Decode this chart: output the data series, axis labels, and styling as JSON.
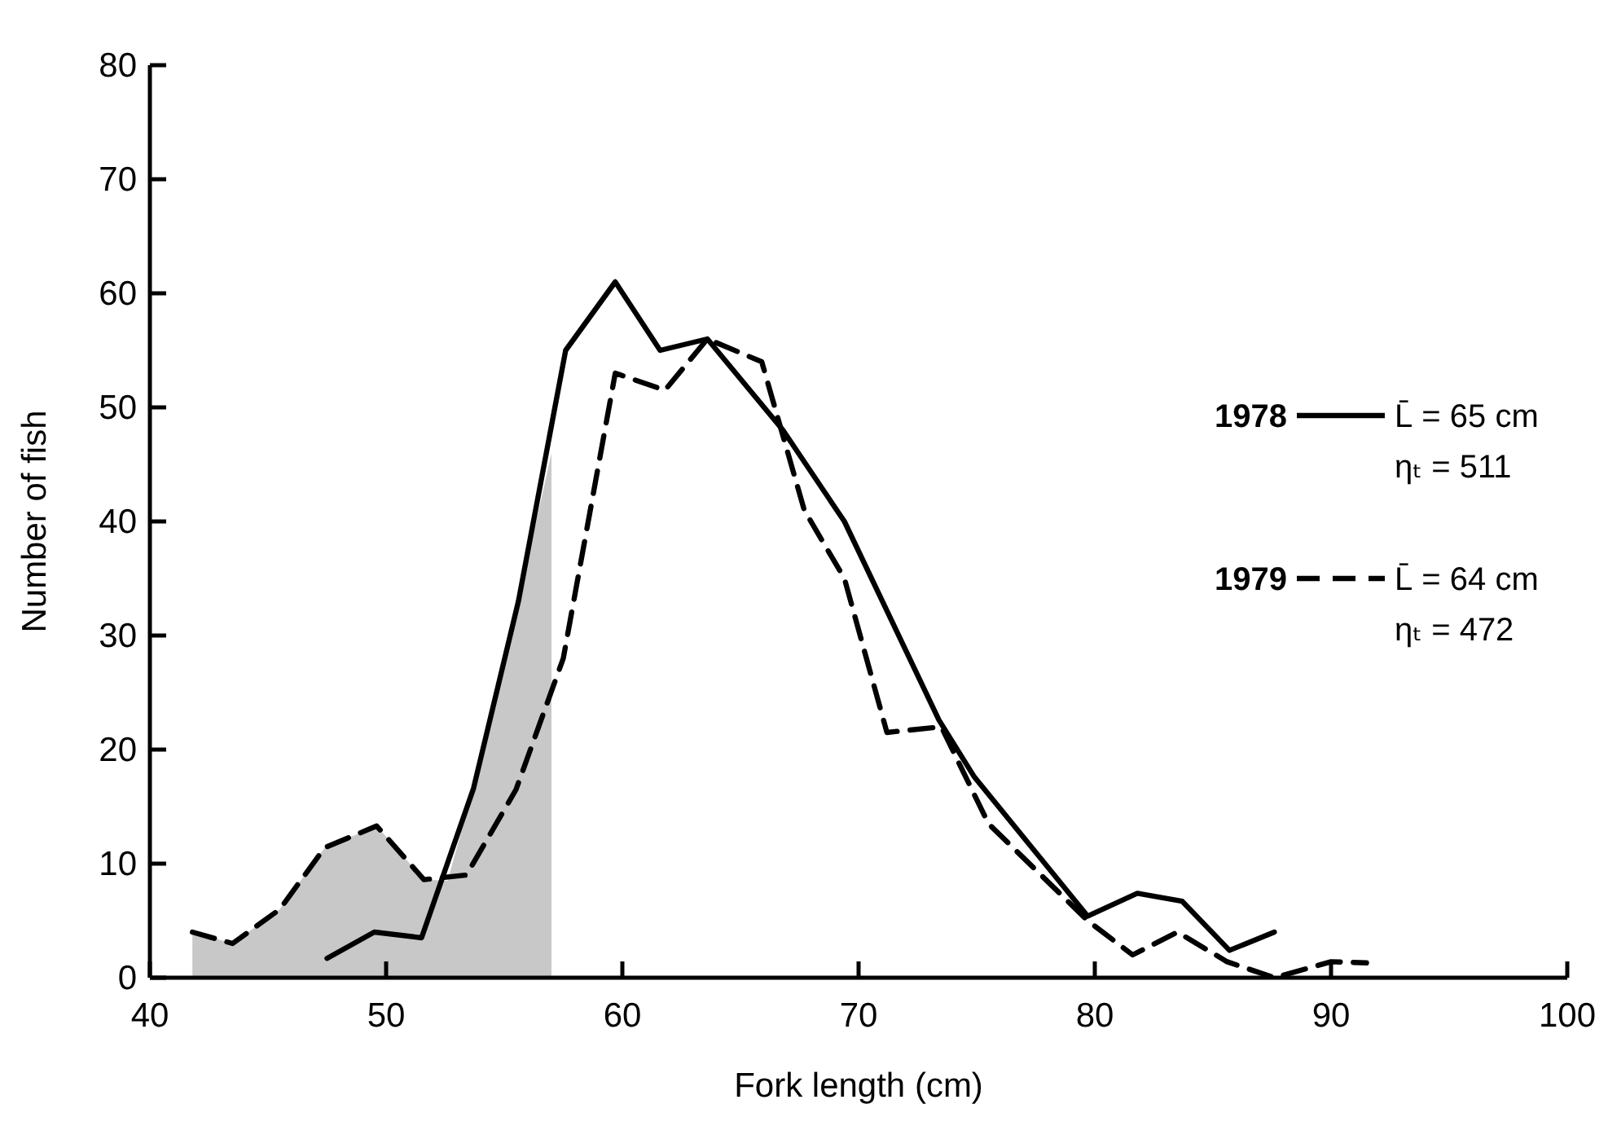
{
  "chart_data": {
    "type": "line",
    "xlabel": "Fork length (cm)",
    "ylabel": "Number of fish",
    "xlim": [
      40,
      100
    ],
    "xticks": [
      40,
      50,
      60,
      70,
      80,
      90,
      100
    ],
    "ylim": [
      0,
      80
    ],
    "yticks": [
      0,
      10,
      20,
      30,
      40,
      50,
      60,
      70,
      80
    ],
    "grid": false,
    "legend": "right",
    "marker": "none",
    "annotations": [
      "L̄ = 65 cm",
      "ηₜ = 511",
      "L̄ = 64 cm",
      "ηₜ = 472"
    ],
    "series": [
      {
        "type": "area",
        "color": "#c8c8c8",
        "x": [
          41.8,
          43.5,
          45.5,
          47.4,
          49.6,
          51.6,
          52.6,
          53.7,
          55.6,
          57,
          57
        ],
        "values": [
          4,
          3,
          6,
          11.4,
          13.3,
          8.6,
          8.5,
          16.6,
          33,
          46,
          0
        ]
      },
      {
        "name": "1978",
        "color": "#000000",
        "line_style": "solid",
        "x": [
          47.5,
          49.5,
          51.5,
          53.7,
          55.6,
          57.6,
          59.7,
          61.6,
          63.6,
          66.8,
          69.4,
          73.4,
          74.9,
          79.7,
          81.8,
          83.7,
          85.7,
          87.6
        ],
        "values": [
          1.7,
          4,
          3.5,
          16.6,
          33,
          55,
          61,
          55,
          56,
          48,
          40,
          22.6,
          17.6,
          5.4,
          7.4,
          6.7,
          2.4,
          4
        ]
      },
      {
        "name": "1979",
        "color": "#000000",
        "line_style": "dashed",
        "x": [
          41.8,
          43.5,
          45.5,
          47.4,
          49.6,
          51.6,
          53.4,
          55.5,
          57.5,
          59.7,
          61.8,
          63.6,
          65.9,
          66.8,
          67.7,
          69.4,
          71.2,
          73.5,
          75.5,
          79.7,
          81.6,
          83.5,
          85.6,
          87.6,
          90,
          91.5
        ],
        "values": [
          4,
          3,
          6,
          11.4,
          13.3,
          8.6,
          9,
          16.5,
          28,
          53,
          51.5,
          56,
          54,
          47.5,
          41,
          35,
          21.5,
          22,
          13.5,
          5,
          2,
          4,
          1.4,
          0,
          1.4,
          1.3
        ]
      }
    ]
  }
}
